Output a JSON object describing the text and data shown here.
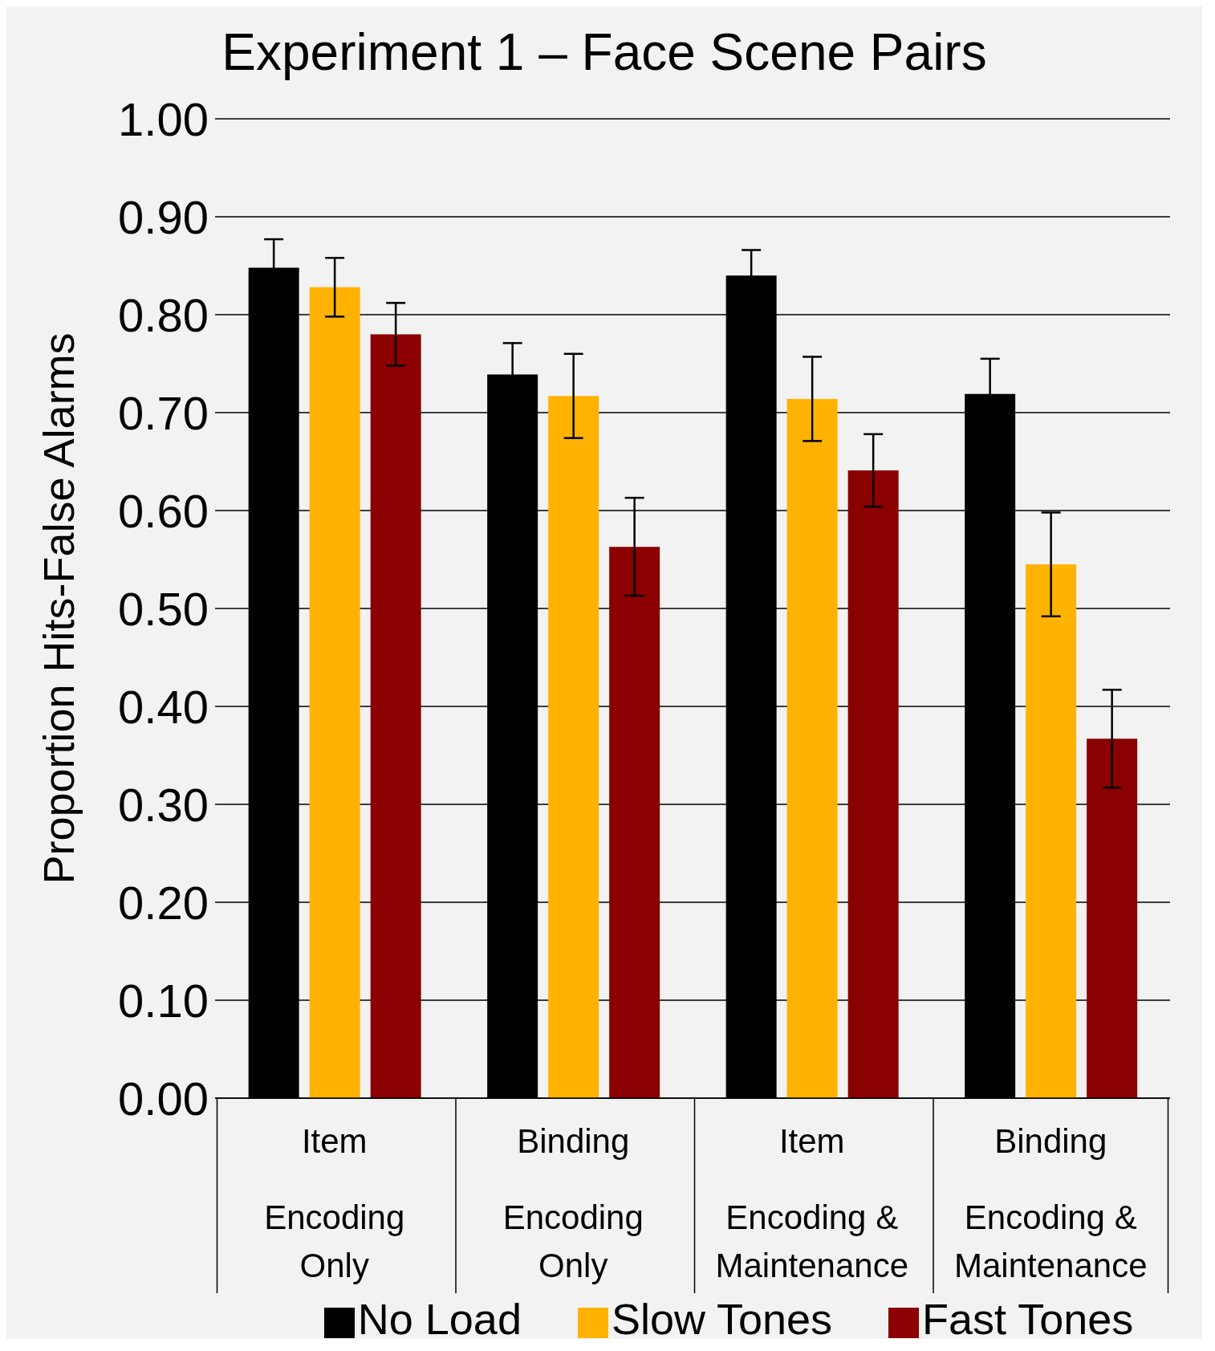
{
  "chart_data": {
    "type": "bar",
    "title": "Experiment 1 – Face Scene Pairs",
    "ylabel": "Proportion Hits-False Alarms",
    "categories": [
      "Item\nEncoding Only",
      "Binding\nEncoding Only",
      "Item\nEncoding & Maintenance",
      "Binding\nEncoding & Maintenance"
    ],
    "series": [
      {
        "name": "No Load",
        "color": "#000000",
        "values": [
          0.848,
          0.739,
          0.84,
          0.719
        ],
        "errors": [
          0.029,
          0.032,
          0.026,
          0.036
        ]
      },
      {
        "name": "Slow Tones",
        "color": "#ffb300",
        "values": [
          0.828,
          0.717,
          0.714,
          0.545
        ],
        "errors": [
          0.03,
          0.043,
          0.043,
          0.053
        ]
      },
      {
        "name": "Fast Tones",
        "color": "#8b0000",
        "values": [
          0.78,
          0.563,
          0.641,
          0.367
        ],
        "errors": [
          0.032,
          0.05,
          0.037,
          0.05
        ]
      }
    ],
    "ylim": [
      0,
      1
    ],
    "yticks": [
      {
        "value": 0,
        "label": "0.00"
      },
      {
        "value": 0.1,
        "label": "0.10"
      },
      {
        "value": 0.2,
        "label": "0.20"
      },
      {
        "value": 0.3,
        "label": "0.30"
      },
      {
        "value": 0.4,
        "label": "0.40"
      },
      {
        "value": 0.5,
        "label": "0.50"
      },
      {
        "value": 0.6,
        "label": "0.60"
      },
      {
        "value": 0.7,
        "label": "0.70"
      },
      {
        "value": 0.8,
        "label": "0.80"
      },
      {
        "value": 0.9,
        "label": "0.90"
      },
      {
        "value": 1,
        "label": "1.00"
      }
    ],
    "grid": "y",
    "legend": "bottom"
  }
}
